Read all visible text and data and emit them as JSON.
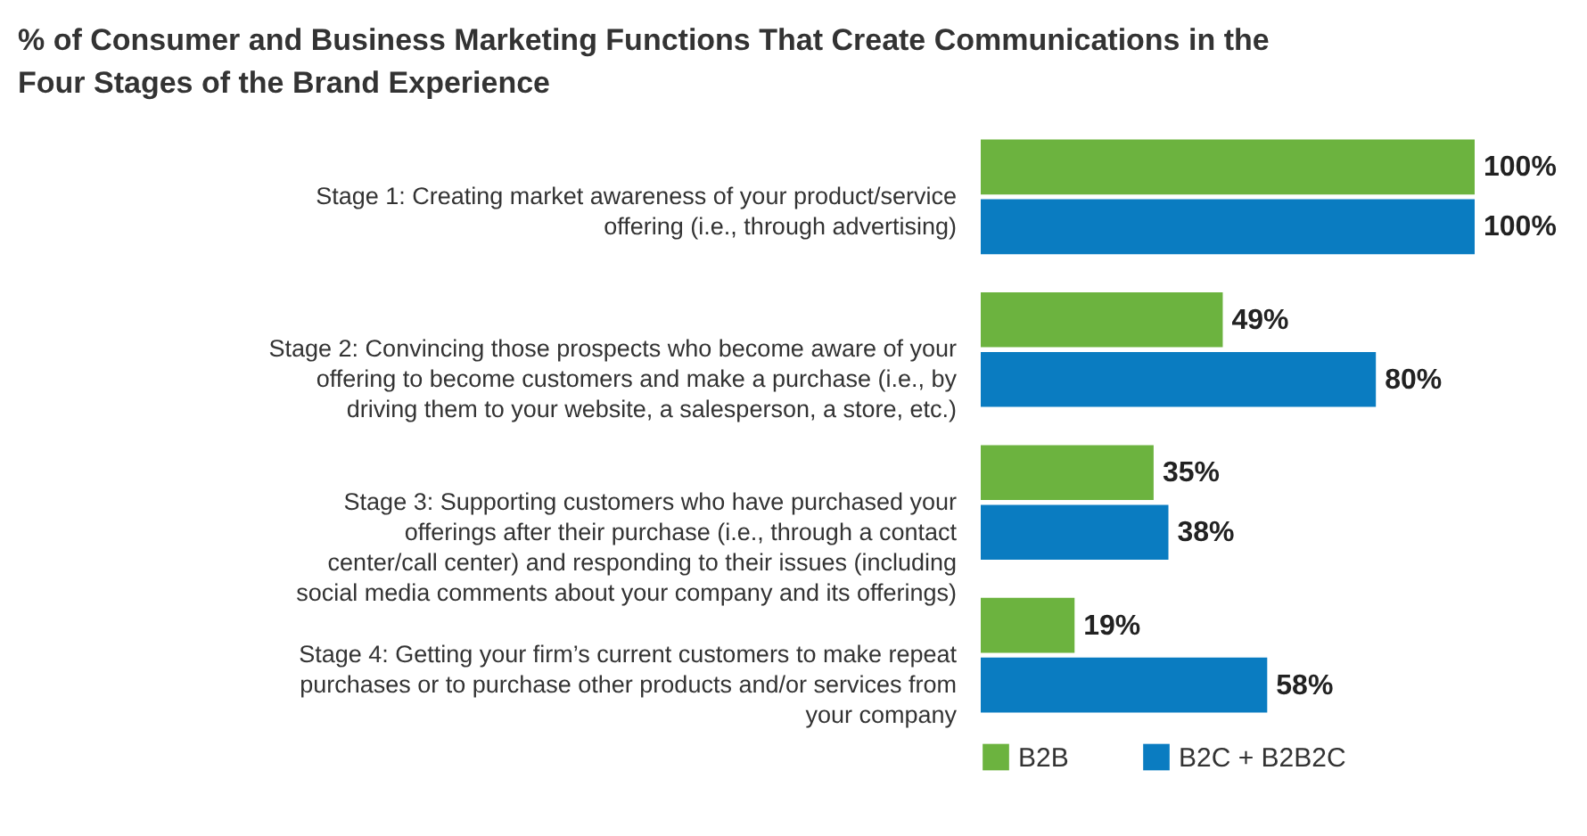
{
  "chart_data": {
    "type": "bar",
    "orientation": "horizontal",
    "title": "% of Consumer and Business Marketing Functions That Create Communications in the Four Stages of the Brand Experience",
    "categories": [
      "Stage 1: Creating market awareness of your product/service offering (i.e., through advertising)",
      "Stage 2: Convincing those prospects who become aware of your offering to become customers and make a purchase (i.e., by driving them to your website, a salesperson, a store, etc.)",
      "Stage 3: Supporting customers who have purchased your offerings after their purchase (i.e., through a contact center/call center) and responding to their issues (including social media comments about your company and its offerings)",
      "Stage 4: Getting your firm’s current customers to make repeat purchases or to purchase other products and/or services from your company"
    ],
    "series": [
      {
        "name": "B2B",
        "color": "#6cb33f",
        "values": [
          100,
          49,
          35,
          19
        ],
        "value_labels": [
          "100%",
          "49%",
          "35%",
          "19%"
        ]
      },
      {
        "name": "B2C + B2B2C",
        "color": "#0a7cc1",
        "values": [
          100,
          80,
          38,
          58
        ],
        "value_labels": [
          "100%",
          "80%",
          "38%",
          "58%"
        ]
      }
    ],
    "legend": "bottom"
  }
}
